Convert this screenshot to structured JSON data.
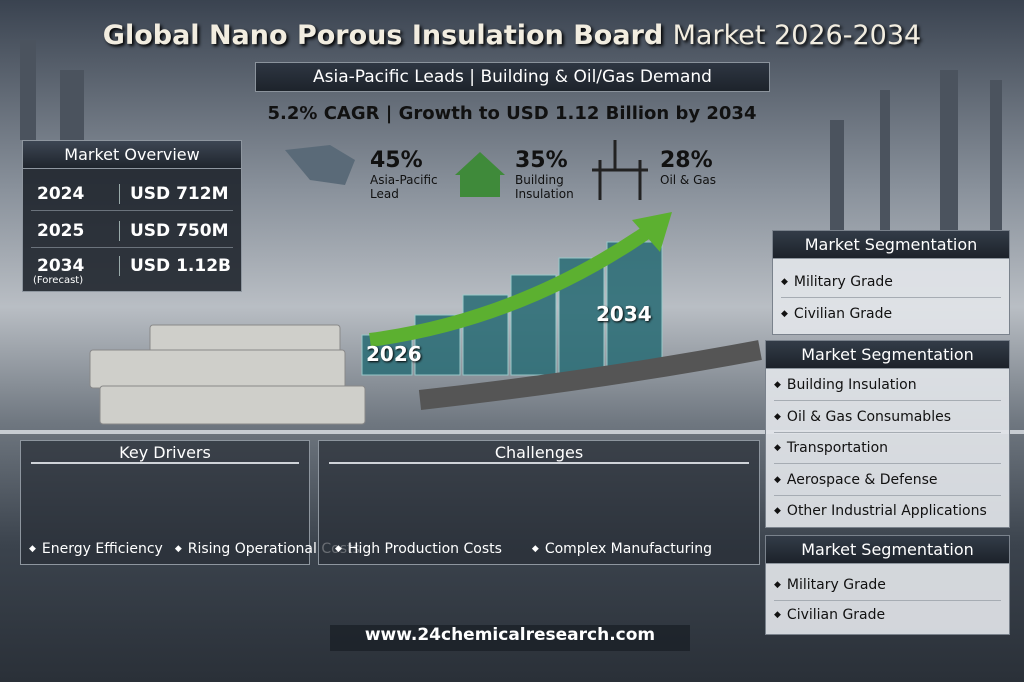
{
  "header": {
    "title_main": "Global Nano Porous Insulation Board",
    "title_suffix": "Market 2026-2034",
    "subtitle": "Asia-Pacific Leads | Building & Oil/Gas Demand",
    "tagline": "5.2% CAGR | Growth to USD 1.12 Billion by 2034"
  },
  "stats": [
    {
      "value": "45%",
      "label": "Asia-Pacific Lead"
    },
    {
      "value": "35%",
      "label": "Building Insulation"
    },
    {
      "value": "28%",
      "label": "Oil & Gas"
    }
  ],
  "market_overview": {
    "title": "Market Overview",
    "rows": [
      [
        "2024",
        "USD 712M"
      ],
      [
        "2025",
        "USD 750M"
      ],
      [
        "2034",
        "USD 1.12B"
      ]
    ],
    "note": "(Forecast)"
  },
  "growth_graphic": {
    "start_label": "2026",
    "end_label": "2034"
  },
  "segmentation": [
    {
      "title": "Market Segmentation",
      "items": [
        "Military Grade",
        "Civilian Grade"
      ]
    },
    {
      "title": "Market Segmentation",
      "items": [
        "Building Insulation",
        "Oil & Gas Consumables",
        "Transportation",
        "Aerospace & Defense",
        "Other Industrial Applications"
      ]
    },
    {
      "title": "Market Segmentation",
      "items": [
        "Military Grade",
        "Civilian Grade"
      ]
    }
  ],
  "key_drivers": {
    "title": "Key Drivers",
    "items": [
      "Energy Efficiency",
      "Rising Operational Costs"
    ]
  },
  "challenges": {
    "title": "Challenges",
    "items": [
      "High Production Costs",
      "Complex Manufacturing"
    ]
  },
  "footer": {
    "url": "www.24chemicalresearch.com"
  }
}
